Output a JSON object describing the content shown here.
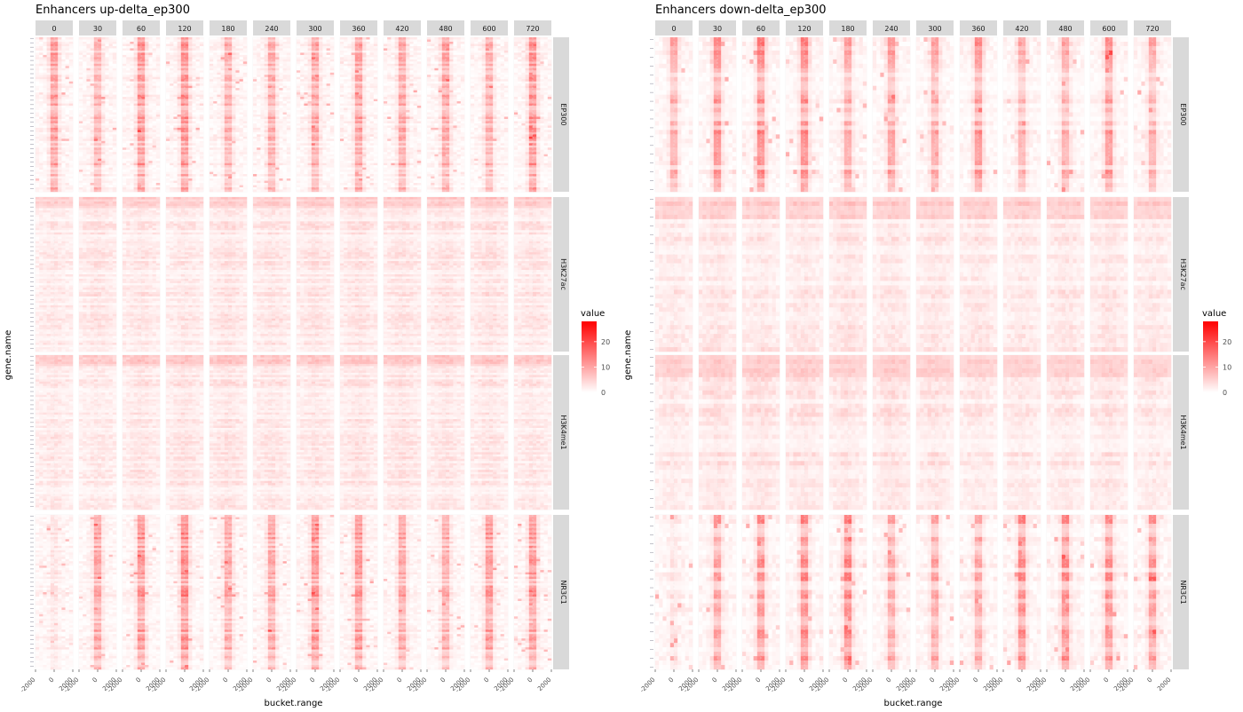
{
  "chart_data": [
    {
      "type": "heatmap",
      "title": "Enhancers up-delta_ep300",
      "xlabel": "bucket.range",
      "ylabel": "gene.name",
      "col_facets": [
        "0",
        "30",
        "60",
        "120",
        "180",
        "240",
        "300",
        "360",
        "420",
        "480",
        "600",
        "720"
      ],
      "row_facets": [
        "EP300",
        "H3K27ac",
        "H3K4me1",
        "NR3C1"
      ],
      "x_ticks": [
        "-2000",
        "0",
        "2000"
      ],
      "x_range": [
        -2000,
        2000
      ],
      "legend": {
        "title": "value",
        "ticks": [
          0,
          10,
          20
        ],
        "range": [
          0,
          28
        ],
        "low_color": "#ffffff",
        "high_color": "#ff0000"
      },
      "n_genes": 70
    },
    {
      "type": "heatmap",
      "title": "Enhancers down-delta_ep300",
      "xlabel": "bucket.range",
      "ylabel": "gene.name",
      "col_facets": [
        "0",
        "30",
        "60",
        "120",
        "180",
        "240",
        "300",
        "360",
        "420",
        "480",
        "600",
        "720"
      ],
      "row_facets": [
        "EP300",
        "H3K27ac",
        "H3K4me1",
        "NR3C1"
      ],
      "x_ticks": [
        "-2000",
        "0",
        "2000"
      ],
      "x_range": [
        -2000,
        2000
      ],
      "legend": {
        "title": "value",
        "ticks": [
          0,
          10,
          20
        ],
        "range": [
          0,
          28
        ],
        "low_color": "#ffffff",
        "high_color": "#ff0000"
      },
      "n_genes": 35
    }
  ]
}
